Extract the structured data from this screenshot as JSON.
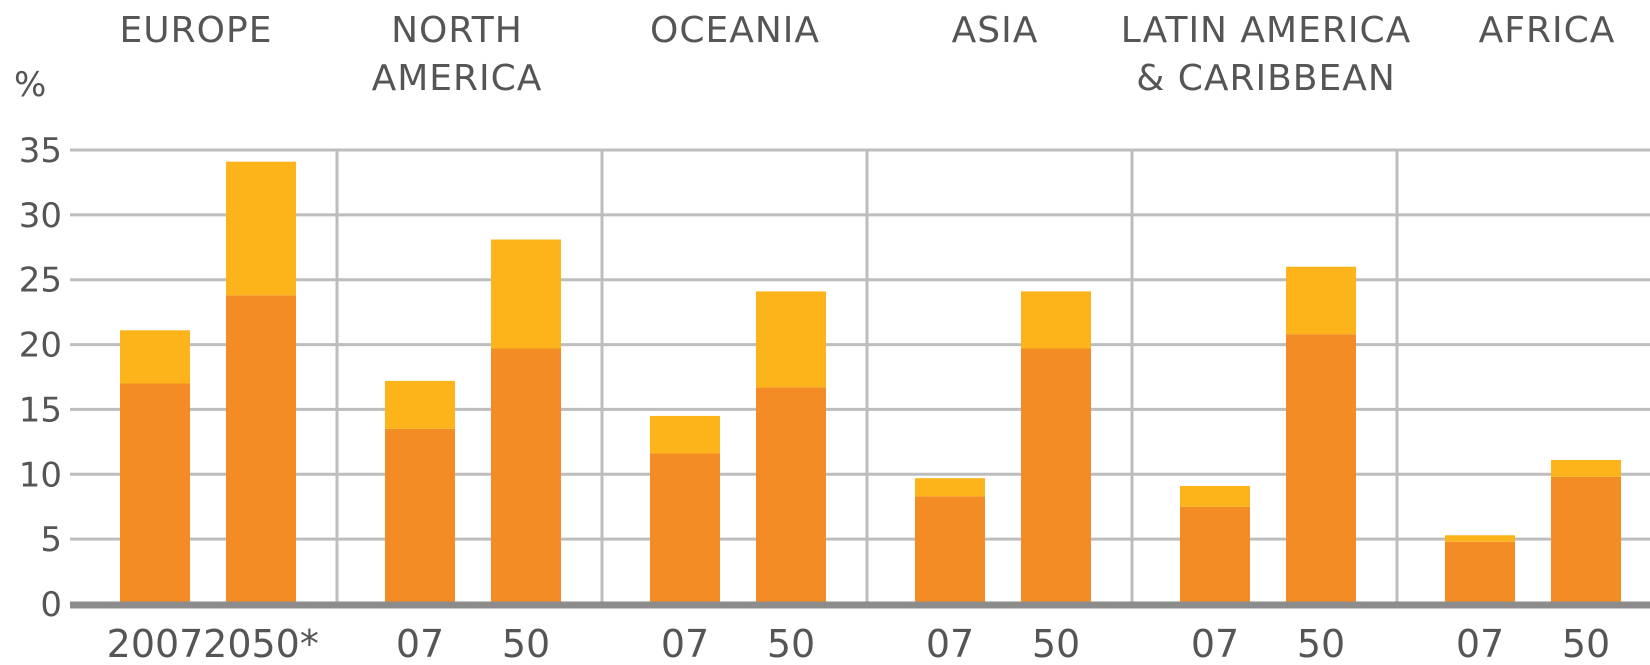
{
  "chart_data": {
    "type": "bar",
    "stacked": true,
    "title": "",
    "ylabel": "%",
    "xlabel": "",
    "ylim": [
      0,
      35
    ],
    "yticks": [
      0,
      5,
      10,
      15,
      20,
      25,
      30,
      35
    ],
    "grid": true,
    "colors": {
      "lower": "#F38C24",
      "upper": "#FDB41A",
      "grid": "#BDBDBD",
      "axis": "#8C8C8C",
      "text": "#555555"
    },
    "regions": [
      {
        "lines": [
          "EUROPE"
        ]
      },
      {
        "lines": [
          "NORTH",
          "AMERICA"
        ]
      },
      {
        "lines": [
          "OCEANIA"
        ]
      },
      {
        "lines": [
          "ASIA"
        ]
      },
      {
        "lines": [
          "LATIN AMERICA",
          "& CARIBBEAN"
        ]
      },
      {
        "lines": [
          "AFRICA"
        ]
      }
    ],
    "categories": [
      "2007",
      "2050*",
      "07",
      "50",
      "07",
      "50",
      "07",
      "50",
      "07",
      "50",
      "07",
      "50"
    ],
    "series": [
      {
        "values": [
          17.0,
          23.8,
          13.5,
          19.7,
          11.6,
          16.7,
          8.3,
          19.7,
          7.5,
          20.8,
          4.8,
          9.8
        ]
      },
      {
        "values": [
          4.1,
          10.3,
          3.7,
          8.4,
          2.9,
          7.4,
          1.4,
          4.4,
          1.6,
          5.2,
          0.5,
          1.3
        ]
      }
    ]
  }
}
